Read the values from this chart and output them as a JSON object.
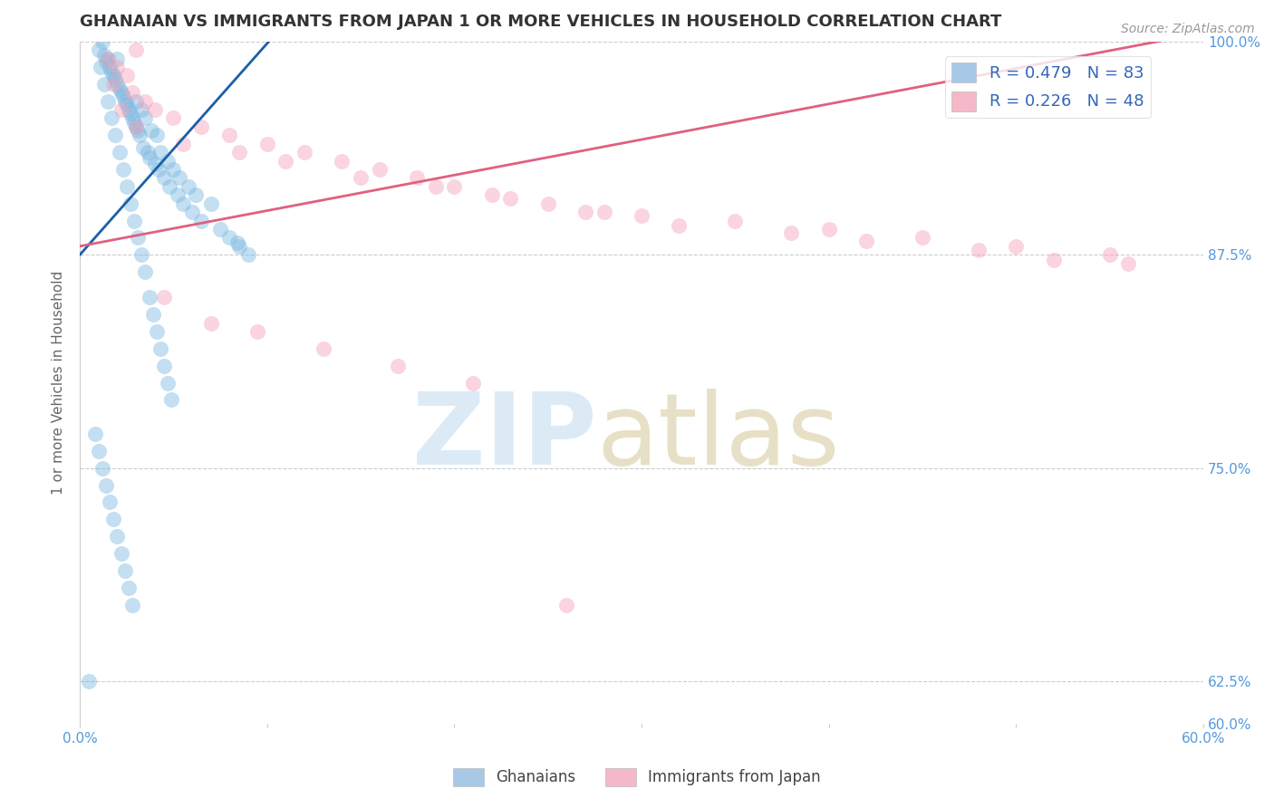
{
  "title": "GHANAIAN VS IMMIGRANTS FROM JAPAN 1 OR MORE VEHICLES IN HOUSEHOLD CORRELATION CHART",
  "source_text": "Source: ZipAtlas.com",
  "ylabel": "1 or more Vehicles in Household",
  "xlim": [
    0.0,
    60.0
  ],
  "ylim": [
    60.0,
    100.0
  ],
  "ytick_values": [
    60.0,
    62.5,
    75.0,
    87.5,
    100.0
  ],
  "xtick_values": [
    0.0,
    10.0,
    20.0,
    30.0,
    40.0,
    50.0,
    60.0
  ],
  "xtick_show": [
    0.0,
    60.0
  ],
  "legend_entries": [
    {
      "label": "Ghanaians",
      "R": 0.479,
      "N": 83
    },
    {
      "label": "Immigrants from Japan",
      "R": 0.226,
      "N": 48
    }
  ],
  "blue_scatter_x": [
    1.0,
    1.2,
    1.3,
    1.4,
    1.5,
    1.6,
    1.7,
    1.8,
    1.9,
    2.0,
    2.0,
    2.1,
    2.2,
    2.3,
    2.4,
    2.5,
    2.6,
    2.7,
    2.8,
    2.9,
    3.0,
    3.0,
    3.1,
    3.2,
    3.3,
    3.4,
    3.5,
    3.6,
    3.7,
    3.8,
    4.0,
    4.1,
    4.2,
    4.3,
    4.5,
    4.7,
    4.8,
    5.0,
    5.2,
    5.3,
    5.5,
    5.8,
    6.0,
    6.2,
    6.5,
    7.0,
    7.5,
    8.0,
    8.4,
    8.5,
    9.0,
    1.1,
    1.3,
    1.5,
    1.7,
    1.9,
    2.1,
    2.3,
    2.5,
    2.7,
    2.9,
    3.1,
    3.3,
    3.5,
    3.7,
    3.9,
    4.1,
    4.3,
    4.5,
    4.7,
    4.9,
    0.8,
    1.0,
    1.2,
    1.4,
    1.6,
    1.8,
    2.0,
    2.2,
    2.4,
    2.6,
    2.8,
    0.5
  ],
  "blue_scatter_y": [
    99.5,
    100.0,
    99.2,
    98.8,
    99.0,
    98.5,
    98.2,
    98.0,
    97.8,
    97.5,
    99.0,
    97.2,
    97.0,
    96.8,
    96.5,
    96.3,
    96.0,
    95.8,
    95.5,
    95.2,
    95.0,
    96.5,
    94.8,
    94.5,
    96.0,
    93.8,
    95.5,
    93.5,
    93.2,
    94.8,
    92.8,
    94.5,
    92.5,
    93.5,
    92.0,
    93.0,
    91.5,
    92.5,
    91.0,
    92.0,
    90.5,
    91.5,
    90.0,
    91.0,
    89.5,
    90.5,
    89.0,
    88.5,
    88.2,
    88.0,
    87.5,
    98.5,
    97.5,
    96.5,
    95.5,
    94.5,
    93.5,
    92.5,
    91.5,
    90.5,
    89.5,
    88.5,
    87.5,
    86.5,
    85.0,
    84.0,
    83.0,
    82.0,
    81.0,
    80.0,
    79.0,
    77.0,
    76.0,
    75.0,
    74.0,
    73.0,
    72.0,
    71.0,
    70.0,
    69.0,
    68.0,
    67.0,
    62.5
  ],
  "pink_scatter_x": [
    1.5,
    2.0,
    2.5,
    3.0,
    1.8,
    2.8,
    3.5,
    4.0,
    5.0,
    6.5,
    8.0,
    10.0,
    12.0,
    14.0,
    16.0,
    18.0,
    20.0,
    22.0,
    25.0,
    28.0,
    30.0,
    35.0,
    40.0,
    45.0,
    50.0,
    55.0,
    3.0,
    5.5,
    8.5,
    11.0,
    15.0,
    19.0,
    23.0,
    27.0,
    32.0,
    38.0,
    42.0,
    48.0,
    52.0,
    56.0,
    2.2,
    4.5,
    7.0,
    9.5,
    13.0,
    17.0,
    21.0,
    26.0
  ],
  "pink_scatter_y": [
    99.0,
    98.5,
    98.0,
    99.5,
    97.5,
    97.0,
    96.5,
    96.0,
    95.5,
    95.0,
    94.5,
    94.0,
    93.5,
    93.0,
    92.5,
    92.0,
    91.5,
    91.0,
    90.5,
    90.0,
    89.8,
    89.5,
    89.0,
    88.5,
    88.0,
    87.5,
    95.0,
    94.0,
    93.5,
    93.0,
    92.0,
    91.5,
    90.8,
    90.0,
    89.2,
    88.8,
    88.3,
    87.8,
    87.2,
    87.0,
    96.0,
    85.0,
    83.5,
    83.0,
    82.0,
    81.0,
    80.0,
    67.0
  ],
  "blue_line_x": [
    0.0,
    10.5
  ],
  "blue_line_y": [
    87.5,
    100.5
  ],
  "pink_line_x": [
    0.0,
    60.0
  ],
  "pink_line_y": [
    88.0,
    100.5
  ],
  "scatter_alpha": 0.45,
  "scatter_size": 150,
  "blue_color": "#7ab8e0",
  "pink_color": "#f4a0b8",
  "blue_line_color": "#1a5fa8",
  "pink_line_color": "#e06080",
  "grid_color": "#cccccc",
  "background_color": "#ffffff",
  "title_color": "#333333",
  "axis_label_color": "#666666",
  "tick_label_color": "#5599dd",
  "source_color": "#999999",
  "legend_blue_color": "#a8c8e8",
  "legend_pink_color": "#f4b8c8",
  "legend_text_color": "#3366bb"
}
